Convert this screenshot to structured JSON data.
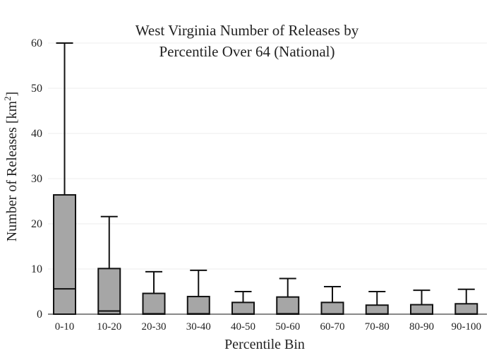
{
  "chart_data": {
    "type": "box",
    "title": [
      "West Virginia Number of Releases by",
      "Percentile Over 64 (National)"
    ],
    "xlabel": "Percentile Bin",
    "ylabel_text": "Number of Releases  [km",
    "ylabel_sup": "2",
    "ylabel_close": "]",
    "ylim": [
      0,
      60
    ],
    "yticks": [
      0,
      10,
      20,
      30,
      40,
      50,
      60
    ],
    "grid": true,
    "box_color": "#a6a6a6",
    "line_color": "#111111",
    "grid_color": "#ececec",
    "categories": [
      "0-10",
      "10-20",
      "20-30",
      "30-40",
      "40-50",
      "50-60",
      "60-70",
      "70-80",
      "80-90",
      "90-100"
    ],
    "boxes": [
      {
        "min": 0,
        "q1": 0,
        "median": 5.6,
        "q3": 26.4,
        "max": 60
      },
      {
        "min": 0,
        "q1": 0,
        "median": 0.7,
        "q3": 10.1,
        "max": 21.6
      },
      {
        "min": 0,
        "q1": 0,
        "median": 0.1,
        "q3": 4.6,
        "max": 9.4
      },
      {
        "min": 0,
        "q1": 0,
        "median": 0.1,
        "q3": 3.9,
        "max": 9.7
      },
      {
        "min": 0,
        "q1": 0,
        "median": 0.05,
        "q3": 2.6,
        "max": 5.0
      },
      {
        "min": 0,
        "q1": 0,
        "median": 0.1,
        "q3": 3.8,
        "max": 7.9
      },
      {
        "min": 0,
        "q1": 0,
        "median": 0.05,
        "q3": 2.6,
        "max": 6.1
      },
      {
        "min": 0,
        "q1": 0,
        "median": 0.05,
        "q3": 2.0,
        "max": 5.0
      },
      {
        "min": 0,
        "q1": 0,
        "median": 0.05,
        "q3": 2.1,
        "max": 5.3
      },
      {
        "min": 0,
        "q1": 0,
        "median": 0.05,
        "q3": 2.3,
        "max": 5.5
      }
    ]
  }
}
